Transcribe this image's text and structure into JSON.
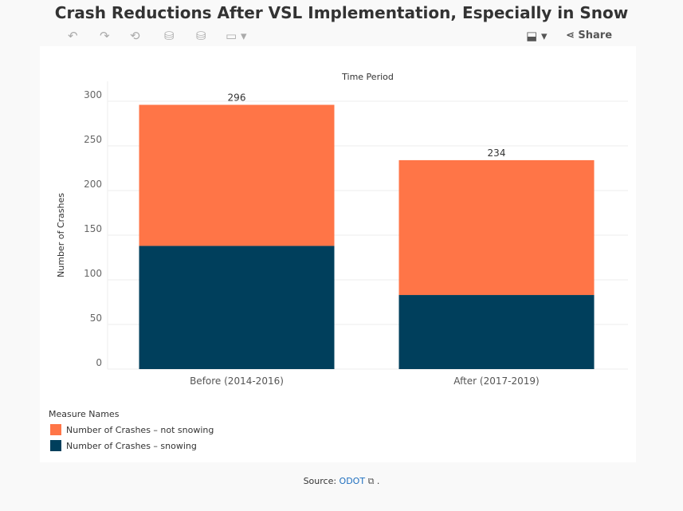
{
  "title": "Crash Reductions After VSL Implementation, Especially in Snow",
  "toolbar": {
    "share_label": "Share",
    "icons": [
      "undo-icon",
      "redo-icon",
      "revert-icon",
      "refresh-icon",
      "pause-icon",
      "device-icon",
      "download-icon",
      "share-icon"
    ]
  },
  "chart_data": {
    "type": "bar",
    "stacked": true,
    "title": "Time Period",
    "ylabel": "Number of Crashes",
    "xlabel": "",
    "ylim": [
      0,
      300
    ],
    "yticks": [
      0,
      50,
      100,
      150,
      200,
      250,
      300
    ],
    "grid": true,
    "categories": [
      "Before (2014-2016)",
      "After (2017-2019)"
    ],
    "series": [
      {
        "name": "Number of Crashes – snowing",
        "color": "#003f5c",
        "values": [
          138,
          83
        ]
      },
      {
        "name": "Number of Crashes – not snowing",
        "color": "#ff7547",
        "values": [
          158,
          151
        ]
      }
    ],
    "totals": [
      296,
      234
    ]
  },
  "legend": {
    "title": "Measure Names",
    "items": [
      {
        "label": "Number of Crashes – not snowing",
        "color": "#ff7547"
      },
      {
        "label": "Number of Crashes – snowing",
        "color": "#003f5c"
      }
    ]
  },
  "source": {
    "prefix": "Source: ",
    "link": "ODOT",
    "suffix": " ."
  }
}
